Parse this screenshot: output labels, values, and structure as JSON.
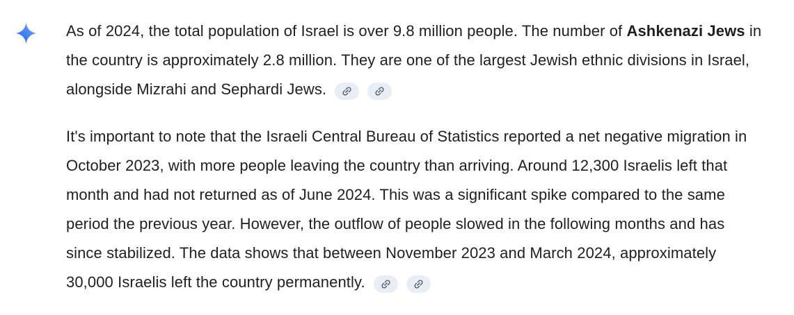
{
  "response": {
    "avatar": {
      "icon": "gemini-sparkle-icon",
      "gradient_top": "#76a8fb",
      "gradient_bottom": "#1b62e5"
    },
    "paragraphs": [
      {
        "segments": [
          {
            "bold": false,
            "text": "As of 2024, the total population of Israel is over 9.8 million people. The number of "
          },
          {
            "bold": true,
            "text": "Ashkenazi Jews"
          },
          {
            "bold": false,
            "text": " in the country is approximately 2.8 million. They are one of the largest Jewish ethnic divisions in Israel, alongside Mizrahi and Sephardi Jews."
          }
        ],
        "citation_count": 2
      },
      {
        "segments": [
          {
            "bold": false,
            "text": "It's important to note that the Israeli Central Bureau of Statistics reported a net negative migration in October 2023, with more people leaving the country than arriving. Around 12,300 Israelis left that month and had not returned as of June 2024. This was a significant spike compared to the same period the previous year. However, the outflow of people slowed in the following months and has since stabilized. The data shows that between November 2023 and March 2024, approximately 30,000 Israelis left the country permanently."
          }
        ],
        "citation_count": 2
      }
    ]
  },
  "colors": {
    "page_bg": "#ffffff",
    "text": "#1f1f1f",
    "chip_bg": "#e9eef6",
    "chip_icon": "#52585e"
  }
}
